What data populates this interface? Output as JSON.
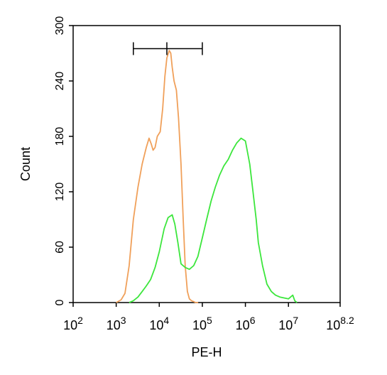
{
  "chart_data": {
    "type": "line",
    "xlabel": "PE-H",
    "ylabel": "Count",
    "x_scale": "log10",
    "xlim": [
      100,
      158489319
    ],
    "ylim": [
      0,
      300
    ],
    "x_ticks": [
      {
        "base": "10",
        "exp": "2"
      },
      {
        "base": "10",
        "exp": "3"
      },
      {
        "base": "10",
        "exp": "4"
      },
      {
        "base": "10",
        "exp": "5"
      },
      {
        "base": "10",
        "exp": "6"
      },
      {
        "base": "10",
        "exp": "7"
      },
      {
        "base": "10",
        "exp": "8.2"
      }
    ],
    "y_ticks": [
      "0",
      "60",
      "120",
      "180",
      "240",
      "300"
    ],
    "y_tick_values": [
      0,
      60,
      120,
      180,
      240,
      300
    ],
    "gate": {
      "x_start": 2500,
      "x_end": 100000,
      "x_mid": 15000,
      "y": 275
    },
    "series": [
      {
        "color": "#f0a05a",
        "x": [
          1000,
          1300,
          1600,
          2000,
          2500,
          3200,
          4000,
          5000,
          5800,
          6500,
          7200,
          8000,
          9000,
          10500,
          12000,
          13500,
          15000,
          17000,
          18500,
          20000,
          22000,
          25000,
          28000,
          32000,
          36000,
          40000,
          45000,
          50000,
          56000,
          63000,
          70000,
          80000
        ],
        "y": [
          0,
          3,
          10,
          40,
          90,
          125,
          150,
          168,
          178,
          172,
          165,
          168,
          180,
          185,
          210,
          245,
          265,
          273,
          270,
          255,
          240,
          230,
          200,
          150,
          90,
          40,
          12,
          4,
          2,
          1,
          0,
          0
        ]
      },
      {
        "color": "#3ce63c",
        "x": [
          2000,
          2500,
          3200,
          4000,
          5000,
          6300,
          8000,
          10000,
          13000,
          16000,
          20000,
          23000,
          27000,
          32000,
          40000,
          50000,
          63000,
          79000,
          100000,
          126000,
          160000,
          200000,
          251000,
          316000,
          400000,
          501000,
          631000,
          794000,
          1000000,
          1260000,
          1500000,
          1780000,
          2000000,
          2500000,
          3160000,
          4000000,
          5000000,
          6300000,
          7900000,
          10000000,
          12600000,
          14000000,
          15800000
        ],
        "y": [
          0,
          2,
          6,
          12,
          18,
          25,
          38,
          55,
          80,
          92,
          95,
          85,
          65,
          42,
          38,
          36,
          40,
          50,
          70,
          90,
          110,
          125,
          138,
          148,
          155,
          165,
          173,
          178,
          175,
          150,
          120,
          90,
          65,
          40,
          20,
          12,
          8,
          6,
          5,
          4,
          8,
          2,
          0
        ]
      }
    ]
  }
}
